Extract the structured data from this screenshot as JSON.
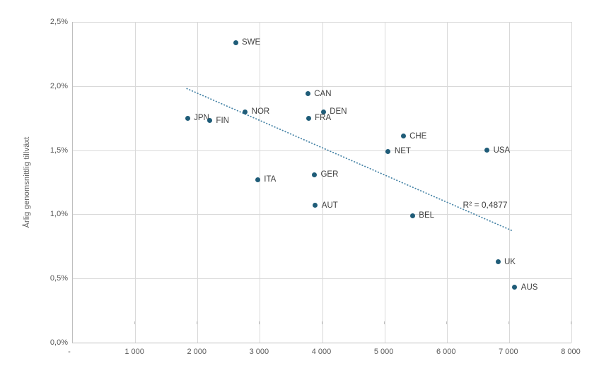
{
  "chart_data": {
    "type": "scatter",
    "title": "",
    "xlabel": "",
    "ylabel": "Årlig genomsnittlig tillväxt",
    "xlim": [
      0,
      8000
    ],
    "ylim": [
      0,
      2.5
    ],
    "grid": true,
    "legend": "none",
    "x_ticks": [
      {
        "v": 0,
        "label": "-"
      },
      {
        "v": 1000,
        "label": "1 000"
      },
      {
        "v": 2000,
        "label": "2 000"
      },
      {
        "v": 3000,
        "label": "3 000"
      },
      {
        "v": 4000,
        "label": "4 000"
      },
      {
        "v": 5000,
        "label": "5 000"
      },
      {
        "v": 6000,
        "label": "6 000"
      },
      {
        "v": 7000,
        "label": "7 000"
      },
      {
        "v": 8000,
        "label": "8 000"
      }
    ],
    "y_ticks": [
      {
        "v": 0,
        "label": "0,0%"
      },
      {
        "v": 0.5,
        "label": "0,5%"
      },
      {
        "v": 1.0,
        "label": "1,0%"
      },
      {
        "v": 1.5,
        "label": "1,5%"
      },
      {
        "v": 2.0,
        "label": "2,0%"
      },
      {
        "v": 2.5,
        "label": "2,5%"
      }
    ],
    "points": [
      {
        "label": "SWE",
        "x": 2610,
        "y": 2.34
      },
      {
        "label": "CAN",
        "x": 3770,
        "y": 1.94
      },
      {
        "label": "NOR",
        "x": 2765,
        "y": 1.8
      },
      {
        "label": "DEN",
        "x": 4020,
        "y": 1.8
      },
      {
        "label": "JPN",
        "x": 1840,
        "y": 1.75
      },
      {
        "label": "FRA",
        "x": 3780,
        "y": 1.75
      },
      {
        "label": "FIN",
        "x": 2195,
        "y": 1.73
      },
      {
        "label": "CHE",
        "x": 5300,
        "y": 1.61
      },
      {
        "label": "USA",
        "x": 6645,
        "y": 1.5
      },
      {
        "label": "NET",
        "x": 5060,
        "y": 1.49
      },
      {
        "label": "GER",
        "x": 3875,
        "y": 1.31
      },
      {
        "label": "ITA",
        "x": 2965,
        "y": 1.27
      },
      {
        "label": "AUT",
        "x": 3890,
        "y": 1.07
      },
      {
        "label": "BEL",
        "x": 5450,
        "y": 0.99
      },
      {
        "label": "UK",
        "x": 6820,
        "y": 0.63
      },
      {
        "label": "AUS",
        "x": 7090,
        "y": 0.43
      }
    ],
    "trendline": {
      "x1": 1830,
      "y1": 1.98,
      "x2": 7060,
      "y2": 0.87,
      "r2_label": "R² = 0,4877",
      "r2_anchor_x": 6270,
      "r2_anchor_y": 1.07,
      "style": "dotted"
    },
    "colors": {
      "point": "#1f5c78",
      "trendline": "#4a86a8",
      "grid": "#d9d9d9",
      "axis": "#bfbfbf",
      "tick_text": "#595959",
      "label_text": "#404040"
    }
  }
}
